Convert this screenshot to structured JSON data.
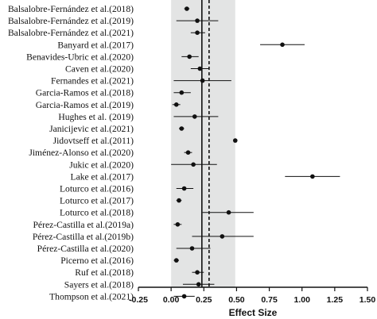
{
  "chart_data": {
    "type": "forest",
    "xlabel": "Effect Size",
    "xlim": [
      -0.25,
      1.5
    ],
    "xticks": [
      "-0.25",
      "0.00",
      "0.25",
      "0.50",
      "0.75",
      "1.00",
      "1.25",
      "1.50"
    ],
    "xtick_values": [
      -0.25,
      0,
      0.25,
      0.5,
      0.75,
      1.0,
      1.25,
      1.5
    ],
    "shaded_band": [
      0.0,
      0.49
    ],
    "reference_lines": [
      {
        "x": 0.235,
        "style": "solid"
      },
      {
        "x": 0.29,
        "style": "dashed"
      }
    ],
    "studies": [
      {
        "label": "Balsalobre-Fernández et al.(2018)",
        "estimate": 0.12,
        "ci": [
          0.1,
          0.14
        ]
      },
      {
        "label": "Balsalobre-Fernández et al.(2019)",
        "estimate": 0.2,
        "ci": [
          0.04,
          0.36
        ]
      },
      {
        "label": "Balsalobre-Fernández et al.(2021)",
        "estimate": 0.2,
        "ci": [
          0.15,
          0.26
        ]
      },
      {
        "label": "Banyard et al.(2017)",
        "estimate": 0.85,
        "ci": [
          0.68,
          1.02
        ]
      },
      {
        "label": "Benavides-Ubric et al.(2020)",
        "estimate": 0.14,
        "ci": [
          0.08,
          0.21
        ]
      },
      {
        "label": "Caven et al.(2020)",
        "estimate": 0.22,
        "ci": [
          0.15,
          0.29
        ]
      },
      {
        "label": "Fernandes et al.(2021)",
        "estimate": 0.24,
        "ci": [
          0.02,
          0.46
        ]
      },
      {
        "label": "Garcia-Ramos et al.(2018)",
        "estimate": 0.08,
        "ci": [
          0.02,
          0.15
        ]
      },
      {
        "label": "Garcia-Ramos et al.(2019)",
        "estimate": 0.04,
        "ci": [
          0.01,
          0.07
        ]
      },
      {
        "label": "Hughes et al. (2019)",
        "estimate": 0.18,
        "ci": [
          0.02,
          0.36
        ]
      },
      {
        "label": "Janicijevic et al.(2021)",
        "estimate": 0.08,
        "ci": [
          0.06,
          0.1
        ]
      },
      {
        "label": "Jidovtseff et al.(2011)",
        "estimate": 0.49,
        "ci": [
          0.48,
          0.5
        ]
      },
      {
        "label": "Jiménez-Alonso et al.(2020)",
        "estimate": 0.13,
        "ci": [
          0.1,
          0.16
        ]
      },
      {
        "label": "Jukic et al.(2020)",
        "estimate": 0.17,
        "ci": [
          0.0,
          0.35
        ]
      },
      {
        "label": "Lake et al.(2017)",
        "estimate": 1.08,
        "ci": [
          0.87,
          1.29
        ]
      },
      {
        "label": "Loturco et al.(2016)",
        "estimate": 0.1,
        "ci": [
          0.04,
          0.17
        ]
      },
      {
        "label": "Loturco et al.(2017)",
        "estimate": 0.06,
        "ci": [
          0.04,
          0.08
        ]
      },
      {
        "label": "Loturco et al.(2018)",
        "estimate": 0.44,
        "ci": [
          0.24,
          0.63
        ]
      },
      {
        "label": "Pérez-Castilla et al.(2019a)",
        "estimate": 0.05,
        "ci": [
          0.02,
          0.08
        ]
      },
      {
        "label": "Pérez-Castilla et al.(2019b)",
        "estimate": 0.39,
        "ci": [
          0.16,
          0.63
        ]
      },
      {
        "label": "Pérez-Castilla et al.(2020)",
        "estimate": 0.16,
        "ci": [
          0.04,
          0.3
        ]
      },
      {
        "label": "Picerno et al.(2016)",
        "estimate": 0.04,
        "ci": [
          0.02,
          0.06
        ]
      },
      {
        "label": "Ruf et al.(2018)",
        "estimate": 0.2,
        "ci": [
          0.16,
          0.25
        ]
      },
      {
        "label": "Sayers et al.(2018)",
        "estimate": 0.21,
        "ci": [
          0.09,
          0.33
        ]
      },
      {
        "label": "Thompson et al.(2021)",
        "estimate": 0.1,
        "ci": [
          0.02,
          0.18
        ]
      }
    ]
  }
}
